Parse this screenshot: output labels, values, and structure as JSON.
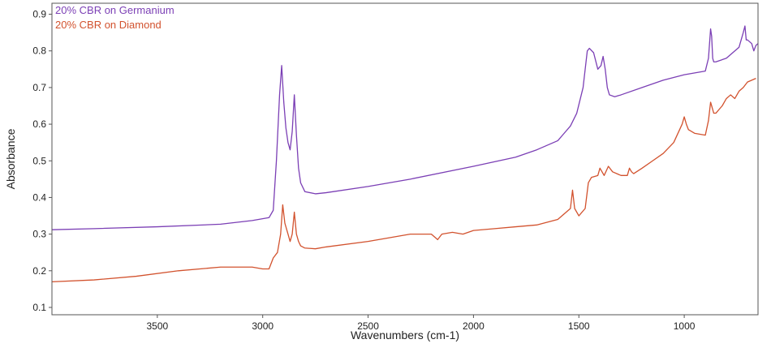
{
  "chart_data": {
    "type": "line",
    "title": "",
    "xlabel": "Wavenumbers (cm-1)",
    "ylabel": "Absorbance",
    "xlim": [
      4000,
      650
    ],
    "ylim": [
      0.08,
      0.93
    ],
    "x_reversed": true,
    "xticks": [
      3500,
      3000,
      2500,
      2000,
      1500,
      1000
    ],
    "yticks": [
      0.1,
      0.2,
      0.3,
      0.4,
      0.5,
      0.6,
      0.7,
      0.8,
      0.9
    ],
    "xtick_labels": [
      "3500",
      "3000",
      "2500",
      "2000",
      "1500",
      "1000"
    ],
    "ytick_labels": [
      "0.1",
      "0.2",
      "0.3",
      "0.4",
      "0.5",
      "0.6",
      "0.7",
      "0.8",
      "0.9"
    ],
    "grid": false,
    "legend": "top-left",
    "series": [
      {
        "name": "20% CBR on Germanium",
        "color": "#7b3fb5",
        "x": [
          4000,
          3800,
          3500,
          3200,
          3050,
          2970,
          2950,
          2935,
          2920,
          2910,
          2900,
          2890,
          2880,
          2870,
          2860,
          2850,
          2840,
          2830,
          2820,
          2800,
          2750,
          2700,
          2500,
          2300,
          2000,
          1800,
          1700,
          1600,
          1570,
          1540,
          1510,
          1480,
          1460,
          1450,
          1430,
          1410,
          1395,
          1385,
          1375,
          1365,
          1355,
          1330,
          1300,
          1200,
          1100,
          1000,
          900,
          885,
          875,
          870,
          865,
          860,
          850,
          800,
          760,
          740,
          720,
          712,
          706,
          700,
          690,
          680,
          670,
          660,
          650
        ],
        "y": [
          0.312,
          0.315,
          0.32,
          0.327,
          0.337,
          0.345,
          0.365,
          0.5,
          0.68,
          0.76,
          0.66,
          0.59,
          0.55,
          0.53,
          0.58,
          0.68,
          0.57,
          0.48,
          0.44,
          0.416,
          0.41,
          0.413,
          0.43,
          0.45,
          0.485,
          0.51,
          0.53,
          0.555,
          0.575,
          0.595,
          0.63,
          0.7,
          0.8,
          0.807,
          0.795,
          0.75,
          0.76,
          0.785,
          0.75,
          0.7,
          0.68,
          0.675,
          0.68,
          0.7,
          0.72,
          0.735,
          0.745,
          0.78,
          0.86,
          0.84,
          0.78,
          0.77,
          0.77,
          0.78,
          0.8,
          0.81,
          0.85,
          0.868,
          0.83,
          0.83,
          0.825,
          0.82,
          0.8,
          0.815,
          0.82
        ]
      },
      {
        "name": "20% CBR on Diamond",
        "color": "#d2522e",
        "x": [
          4000,
          3800,
          3600,
          3400,
          3200,
          3050,
          3000,
          2970,
          2950,
          2930,
          2915,
          2905,
          2895,
          2880,
          2870,
          2860,
          2850,
          2840,
          2830,
          2820,
          2800,
          2750,
          2700,
          2500,
          2400,
          2300,
          2200,
          2170,
          2150,
          2100,
          2050,
          2000,
          1900,
          1800,
          1700,
          1600,
          1560,
          1540,
          1530,
          1520,
          1500,
          1470,
          1455,
          1440,
          1410,
          1400,
          1380,
          1360,
          1340,
          1300,
          1270,
          1260,
          1250,
          1240,
          1200,
          1150,
          1100,
          1050,
          1010,
          1000,
          990,
          980,
          950,
          900,
          885,
          875,
          870,
          860,
          850,
          820,
          800,
          780,
          760,
          740,
          720,
          700,
          680,
          660
        ],
        "y": [
          0.17,
          0.175,
          0.185,
          0.2,
          0.21,
          0.21,
          0.205,
          0.205,
          0.235,
          0.25,
          0.3,
          0.38,
          0.33,
          0.3,
          0.28,
          0.3,
          0.36,
          0.3,
          0.28,
          0.268,
          0.262,
          0.26,
          0.265,
          0.28,
          0.29,
          0.3,
          0.3,
          0.285,
          0.3,
          0.305,
          0.3,
          0.31,
          0.315,
          0.32,
          0.325,
          0.34,
          0.36,
          0.37,
          0.42,
          0.37,
          0.35,
          0.37,
          0.44,
          0.455,
          0.46,
          0.48,
          0.46,
          0.485,
          0.47,
          0.46,
          0.46,
          0.48,
          0.47,
          0.465,
          0.48,
          0.5,
          0.52,
          0.55,
          0.6,
          0.62,
          0.6,
          0.585,
          0.575,
          0.57,
          0.61,
          0.66,
          0.65,
          0.63,
          0.63,
          0.65,
          0.67,
          0.68,
          0.67,
          0.69,
          0.7,
          0.715,
          0.72,
          0.725
        ]
      }
    ]
  }
}
